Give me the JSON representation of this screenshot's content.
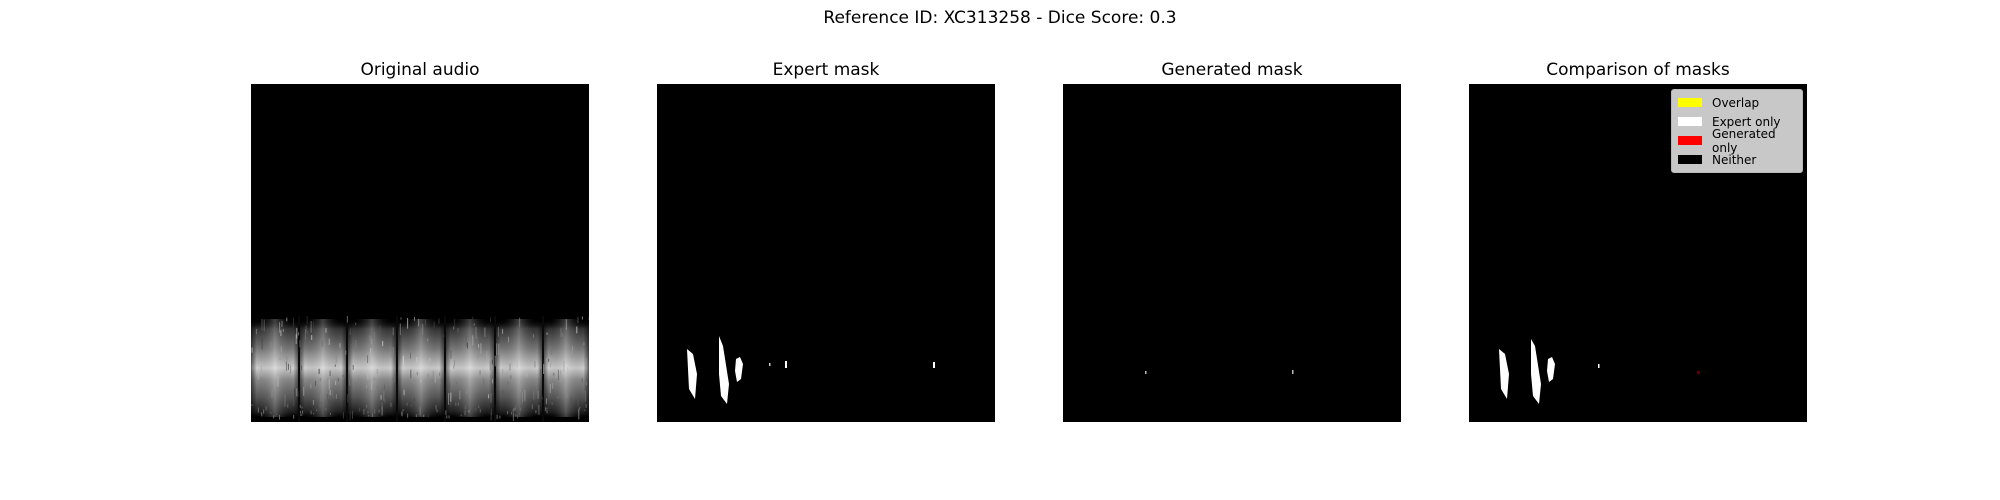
{
  "figure": {
    "suptitle": "Reference ID: XC313258 - Dice Score: 0.3"
  },
  "panels": [
    {
      "title": "Original audio"
    },
    {
      "title": "Expert mask"
    },
    {
      "title": "Generated mask"
    },
    {
      "title": "Comparison of masks"
    }
  ],
  "legend": {
    "items": [
      {
        "label": "Overlap",
        "color": "#ffff00"
      },
      {
        "label": "Expert only",
        "color": "#ffffff"
      },
      {
        "label": "Generated only",
        "color": "#ff0000"
      },
      {
        "label": "Neither",
        "color": "#000000"
      }
    ]
  }
}
